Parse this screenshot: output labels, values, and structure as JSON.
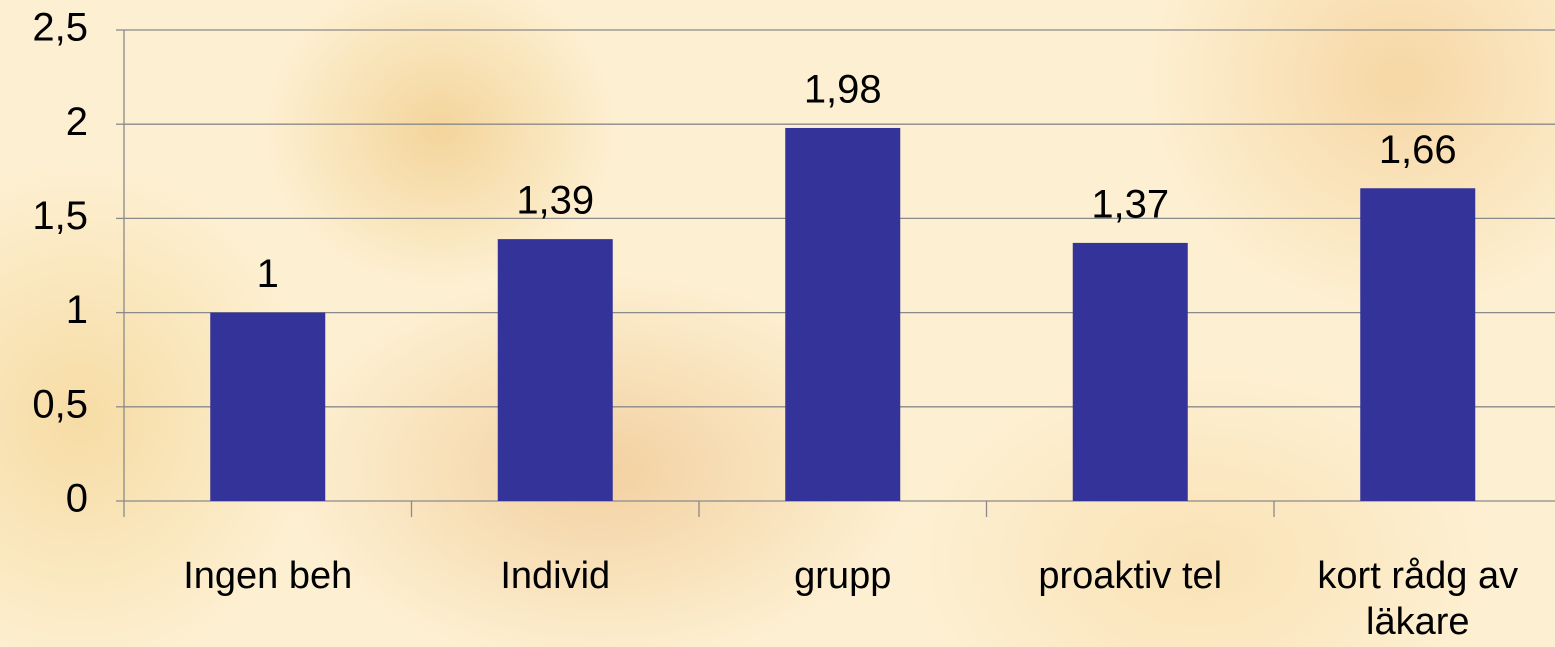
{
  "chart_data": {
    "type": "bar",
    "categories": [
      "Ingen beh",
      "Individ",
      "grupp",
      "proaktiv tel",
      "kort rådg av läkare"
    ],
    "values": [
      1,
      1.39,
      1.98,
      1.37,
      1.66
    ],
    "value_labels": [
      "1",
      "1,39",
      "1,98",
      "1,37",
      "1,66"
    ],
    "color": "#333399",
    "ylim": [
      0,
      2.5
    ],
    "yticks": [
      0,
      {
        "value": 0.5,
        "label": "0,5"
      },
      1,
      {
        "value": 1.5,
        "label": "1,5"
      },
      2,
      {
        "value": 2.5,
        "label": "2,5"
      }
    ],
    "grid": true
  }
}
